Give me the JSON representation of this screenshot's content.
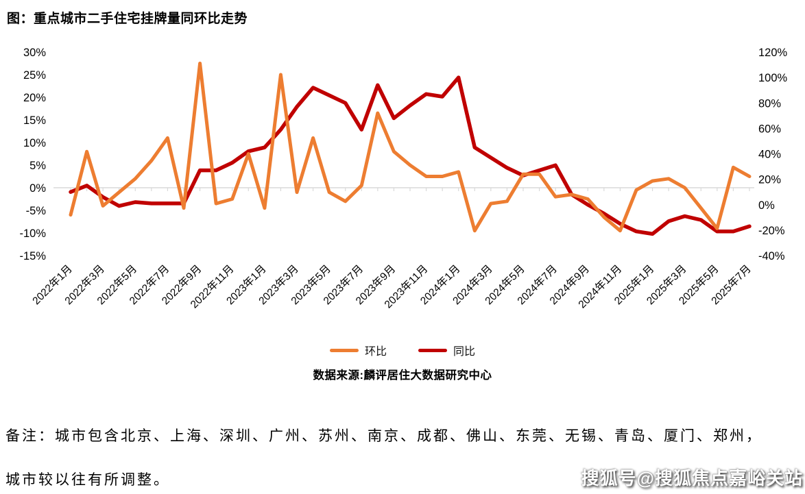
{
  "title": "图：重点城市二手住宅挂牌量同环比走势",
  "source": "数据来源:麟评居住大数据研究中心",
  "watermark": "搜狐号@搜狐焦点嘉峪关站",
  "note": {
    "line1": "备注：城市包含北京、上海、深圳、广州、苏州、南京、成都、佛山、东莞、无锡、青岛、厦门、郑州，",
    "line2": "城市较以往有所调整。"
  },
  "legend": {
    "items": [
      {
        "label": "环比",
        "color": "#ED7D31"
      },
      {
        "label": "同比",
        "color": "#C00000"
      }
    ]
  },
  "chart_data": {
    "type": "line",
    "dual_axis": true,
    "grid": "zero-line-only",
    "legend_position": "bottom",
    "gridline_color": "#D9D9D9",
    "months": [
      "2022年1月",
      "2022年2月",
      "2022年3月",
      "2022年4月",
      "2022年5月",
      "2022年6月",
      "2022年7月",
      "2022年8月",
      "2022年9月",
      "2022年10月",
      "2022年11月",
      "2022年12月",
      "2023年1月",
      "2023年2月",
      "2023年3月",
      "2023年4月",
      "2023年5月",
      "2023年6月",
      "2023年7月",
      "2023年8月",
      "2023年9月",
      "2023年10月",
      "2023年11月",
      "2023年12月",
      "2024年1月",
      "2024年2月",
      "2024年3月",
      "2024年4月",
      "2024年5月",
      "2024年6月",
      "2024年7月",
      "2024年8月",
      "2024年9月",
      "2024年10月",
      "2024年11月",
      "2024年12月",
      "2025年1月",
      "2025年2月",
      "2025年3月",
      "2025年4月",
      "2025年5月",
      "2025年6月",
      "2025年7月"
    ],
    "x_axis_labels": [
      "2022年1月",
      "2022年3月",
      "2022年5月",
      "2022年7月",
      "2022年9月",
      "2022年11月",
      "2023年1月",
      "2023年3月",
      "2023年5月",
      "2023年7月",
      "2023年9月",
      "2023年11月",
      "2024年1月",
      "2024年3月",
      "2024年5月",
      "2024年7月",
      "2024年9月",
      "2024年11月",
      "2025年1月",
      "2025年3月",
      "2025年5月",
      "2025年7月"
    ],
    "left_axis": {
      "title": "",
      "min": -15,
      "max": 30,
      "ticks": [
        "30%",
        "25%",
        "20%",
        "15%",
        "10%",
        "5%",
        "0%",
        "-5%",
        "-10%",
        "-15%"
      ]
    },
    "right_axis": {
      "title": "",
      "min": -40,
      "max": 120,
      "ticks": [
        "120%",
        "100%",
        "80%",
        "60%",
        "40%",
        "20%",
        "0%",
        "-20%",
        "-40%"
      ]
    },
    "series": [
      {
        "name": "环比",
        "axis": "left",
        "color": "#ED7D31",
        "unit": "%",
        "values": [
          -6,
          8,
          -4,
          -1,
          2,
          6,
          11,
          -4.5,
          27.5,
          -3.5,
          -2.5,
          7.5,
          -4.5,
          25,
          -1,
          11,
          -1,
          -3,
          0.5,
          16.5,
          8,
          5,
          2.5,
          2.5,
          3.5,
          -9.5,
          -3.5,
          -3,
          3,
          3,
          -2,
          -1.5,
          -2.5,
          -6.5,
          -9.5,
          -0.5,
          1.5,
          2,
          0,
          -4.5,
          -9,
          4.5,
          2.5
        ]
      },
      {
        "name": "同比",
        "axis": "right",
        "color": "#C00000",
        "unit": "%",
        "values": [
          10,
          15,
          6,
          -1,
          2,
          1,
          1,
          1,
          27,
          27,
          33,
          42,
          45,
          59,
          77,
          92,
          86,
          80,
          59,
          94,
          68,
          78,
          87,
          85,
          100,
          45,
          37,
          29,
          23,
          27,
          31,
          8,
          0,
          -7,
          -15,
          -21,
          -23,
          -13,
          -9,
          -12,
          -21,
          -21,
          -17
        ]
      }
    ]
  }
}
